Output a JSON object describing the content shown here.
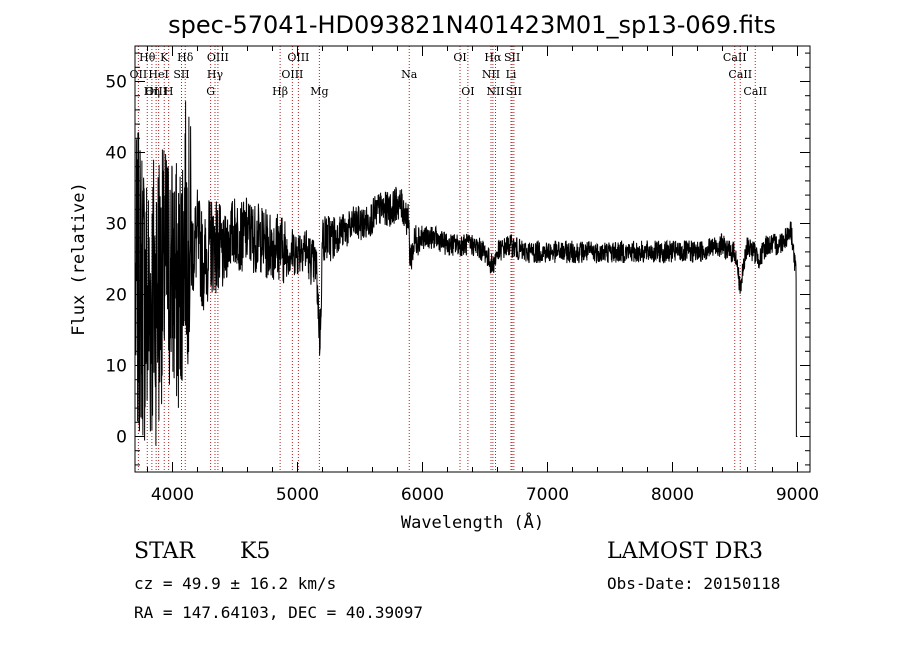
{
  "chart_data": {
    "type": "line",
    "title": "spec-57041-HD093821N401423M01_sp13-069.fits",
    "xlabel": "Wavelength (Å)",
    "ylabel": "Flux (relative)",
    "xlim": [
      3700,
      9100
    ],
    "ylim": [
      -5,
      55
    ],
    "xticks": [
      4000,
      5000,
      6000,
      7000,
      8000,
      9000
    ],
    "xtick_labels": [
      "4000",
      "5000",
      "6000",
      "7000",
      "8000",
      "9000"
    ],
    "yticks": [
      0,
      10,
      20,
      30,
      40,
      50
    ],
    "ytick_labels": [
      "0",
      "10",
      "20",
      "30",
      "40",
      "50"
    ],
    "grid": false,
    "line_color": "#000000",
    "marker_color": "#b22222",
    "spectrum": {
      "name": "flux",
      "x": [
        3700,
        3750,
        3800,
        3850,
        3900,
        3950,
        4000,
        4050,
        4100,
        4150,
        4200,
        4250,
        4300,
        4350,
        4400,
        4450,
        4500,
        4550,
        4600,
        4650,
        4700,
        4750,
        4800,
        4850,
        4900,
        4950,
        5000,
        5050,
        5100,
        5150,
        5170,
        5180,
        5200,
        5250,
        5300,
        5350,
        5400,
        5450,
        5500,
        5550,
        5600,
        5650,
        5700,
        5750,
        5800,
        5850,
        5890,
        5900,
        5950,
        6000,
        6100,
        6200,
        6300,
        6400,
        6500,
        6560,
        6600,
        6700,
        6800,
        6900,
        7000,
        7200,
        7400,
        7600,
        7800,
        8000,
        8200,
        8400,
        8450,
        8500,
        8542,
        8600,
        8650,
        8700,
        8750,
        8800,
        8850,
        8900,
        8950,
        9000
      ],
      "y": [
        20,
        22,
        18,
        20,
        22,
        24,
        23,
        20,
        30,
        26,
        28,
        24,
        27,
        27,
        25,
        28,
        29,
        28,
        29,
        28,
        28,
        27,
        27,
        27,
        26,
        26,
        26,
        27,
        25,
        24,
        17,
        13,
        28,
        28,
        28,
        29,
        29,
        30,
        30,
        30,
        31,
        32,
        32,
        32,
        33,
        32,
        30,
        25,
        28,
        28,
        28,
        27,
        27,
        27,
        26,
        24,
        26,
        27,
        26,
        26,
        26,
        26,
        26,
        26,
        26,
        26,
        26,
        27,
        26,
        26,
        21,
        27,
        26,
        25,
        27,
        27,
        27,
        28,
        29,
        21
      ]
    },
    "lines": [
      {
        "label": "Hθ",
        "wl": 3798,
        "row": 0
      },
      {
        "label": "OII",
        "wl": 3727,
        "row": 1
      },
      {
        "label": "OIII",
        "wl": 3869,
        "row": 2
      },
      {
        "label": "K",
        "wl": 3934,
        "row": 0
      },
      {
        "label": "Hη",
        "wl": 3835,
        "row": 2
      },
      {
        "label": "HeI",
        "wl": 3889,
        "row": 1
      },
      {
        "label": "H",
        "wl": 3969,
        "row": 2
      },
      {
        "label": "SII",
        "wl": 4072,
        "row": 1
      },
      {
        "label": "Hδ",
        "wl": 4102,
        "row": 0
      },
      {
        "label": "OIII",
        "wl": 4363,
        "row": 0
      },
      {
        "label": "Hγ",
        "wl": 4340,
        "row": 1
      },
      {
        "label": "G",
        "wl": 4305,
        "row": 2
      },
      {
        "label": "Hβ",
        "wl": 4861,
        "row": 2
      },
      {
        "label": "OIII",
        "wl": 5007,
        "row": 0
      },
      {
        "label": "OIII",
        "wl": 4959,
        "row": 1
      },
      {
        "label": "Mg",
        "wl": 5175,
        "row": 2
      },
      {
        "label": "Na",
        "wl": 5894,
        "row": 1
      },
      {
        "label": "OI",
        "wl": 6300,
        "row": 0
      },
      {
        "label": "OI",
        "wl": 6363,
        "row": 2
      },
      {
        "label": "Hα",
        "wl": 6563,
        "row": 0
      },
      {
        "label": "NII",
        "wl": 6548,
        "row": 1
      },
      {
        "label": "NII",
        "wl": 6584,
        "row": 2
      },
      {
        "label": "SII",
        "wl": 6717,
        "row": 0
      },
      {
        "label": "Li",
        "wl": 6708,
        "row": 1
      },
      {
        "label": "SII",
        "wl": 6731,
        "row": 2
      },
      {
        "label": "CaII",
        "wl": 8498,
        "row": 0
      },
      {
        "label": "CaII",
        "wl": 8542,
        "row": 1
      },
      {
        "label": "CaII",
        "wl": 8662,
        "row": 2
      }
    ]
  },
  "info": {
    "class_label": "STAR",
    "subclass_label": "K5",
    "cz_text": "cz = 49.9 ± 16.2 km/s",
    "coords_text": "RA = 147.64103, DEC =  40.39097",
    "survey_text": "LAMOST DR3",
    "obsdate_text": "Obs-Date: 20150118"
  }
}
